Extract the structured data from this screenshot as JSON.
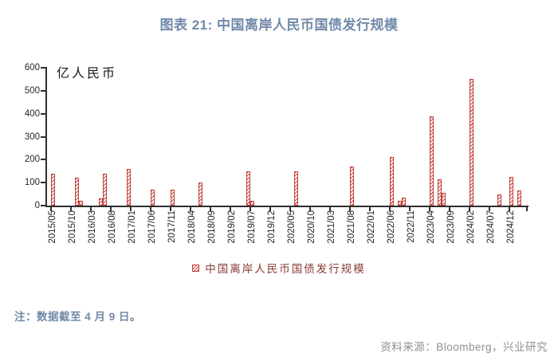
{
  "title": "图表 21: 中国离岸人民币国债发行规模",
  "note": "注：数据截至 4 月 9 日。",
  "source": "资料来源：Bloomberg，兴业研究",
  "colors": {
    "title_blue": "#7189a9",
    "bar_red": "#cb4a46",
    "bar_border_red": "#c1403c",
    "legend_text_red": "#8a3a35",
    "source_gray": "#8f8f8f",
    "axis_dark": "#2f2f2f"
  },
  "chart_data": {
    "type": "bar",
    "title": "图表 21: 中国离岸人民币国债发行规模",
    "unit_label": "亿人民币",
    "ylabel": "亿人民币",
    "xlabel": "",
    "ylim": [
      0,
      600
    ],
    "yticks": [
      0,
      100,
      200,
      300,
      400,
      500,
      600
    ],
    "grid": false,
    "legend_position": "bottom",
    "legend": [
      "中国离岸人民币国债发行规模"
    ],
    "x_tick_labels": [
      "2015/05",
      "2015/10",
      "2016/03",
      "2016/08",
      "2017/01",
      "2017/06",
      "2017/11",
      "2018/04",
      "2018/09",
      "2019/02",
      "2019/07",
      "2019/12",
      "2020/05",
      "2020/10",
      "2021/03",
      "2021/08",
      "2022/01",
      "2022/06",
      "2022/11",
      "2023/04",
      "2023/09",
      "2024/02",
      "2024/07",
      "2024/12"
    ],
    "x_domain": [
      "2015/05",
      "2025/04"
    ],
    "series": [
      {
        "name": "中国离岸人民币国债发行规模",
        "points": [
          {
            "month": "2015/05",
            "value": 140
          },
          {
            "month": "2015/11",
            "value": 120
          },
          {
            "month": "2015/12",
            "value": 20
          },
          {
            "month": "2016/05",
            "value": 30
          },
          {
            "month": "2016/06",
            "value": 140
          },
          {
            "month": "2016/12",
            "value": 160
          },
          {
            "month": "2017/06",
            "value": 70
          },
          {
            "month": "2017/11",
            "value": 70
          },
          {
            "month": "2018/06",
            "value": 100
          },
          {
            "month": "2019/06",
            "value": 150
          },
          {
            "month": "2019/07",
            "value": 20
          },
          {
            "month": "2020/06",
            "value": 150
          },
          {
            "month": "2021/08",
            "value": 170
          },
          {
            "month": "2022/06",
            "value": 210
          },
          {
            "month": "2022/08",
            "value": 20
          },
          {
            "month": "2022/09",
            "value": 35
          },
          {
            "month": "2023/04",
            "value": 390
          },
          {
            "month": "2023/06",
            "value": 115
          },
          {
            "month": "2023/07",
            "value": 55
          },
          {
            "month": "2024/02",
            "value": 550
          },
          {
            "month": "2024/09",
            "value": 50
          },
          {
            "month": "2024/12",
            "value": 125
          },
          {
            "month": "2025/02",
            "value": 65
          }
        ]
      }
    ]
  }
}
